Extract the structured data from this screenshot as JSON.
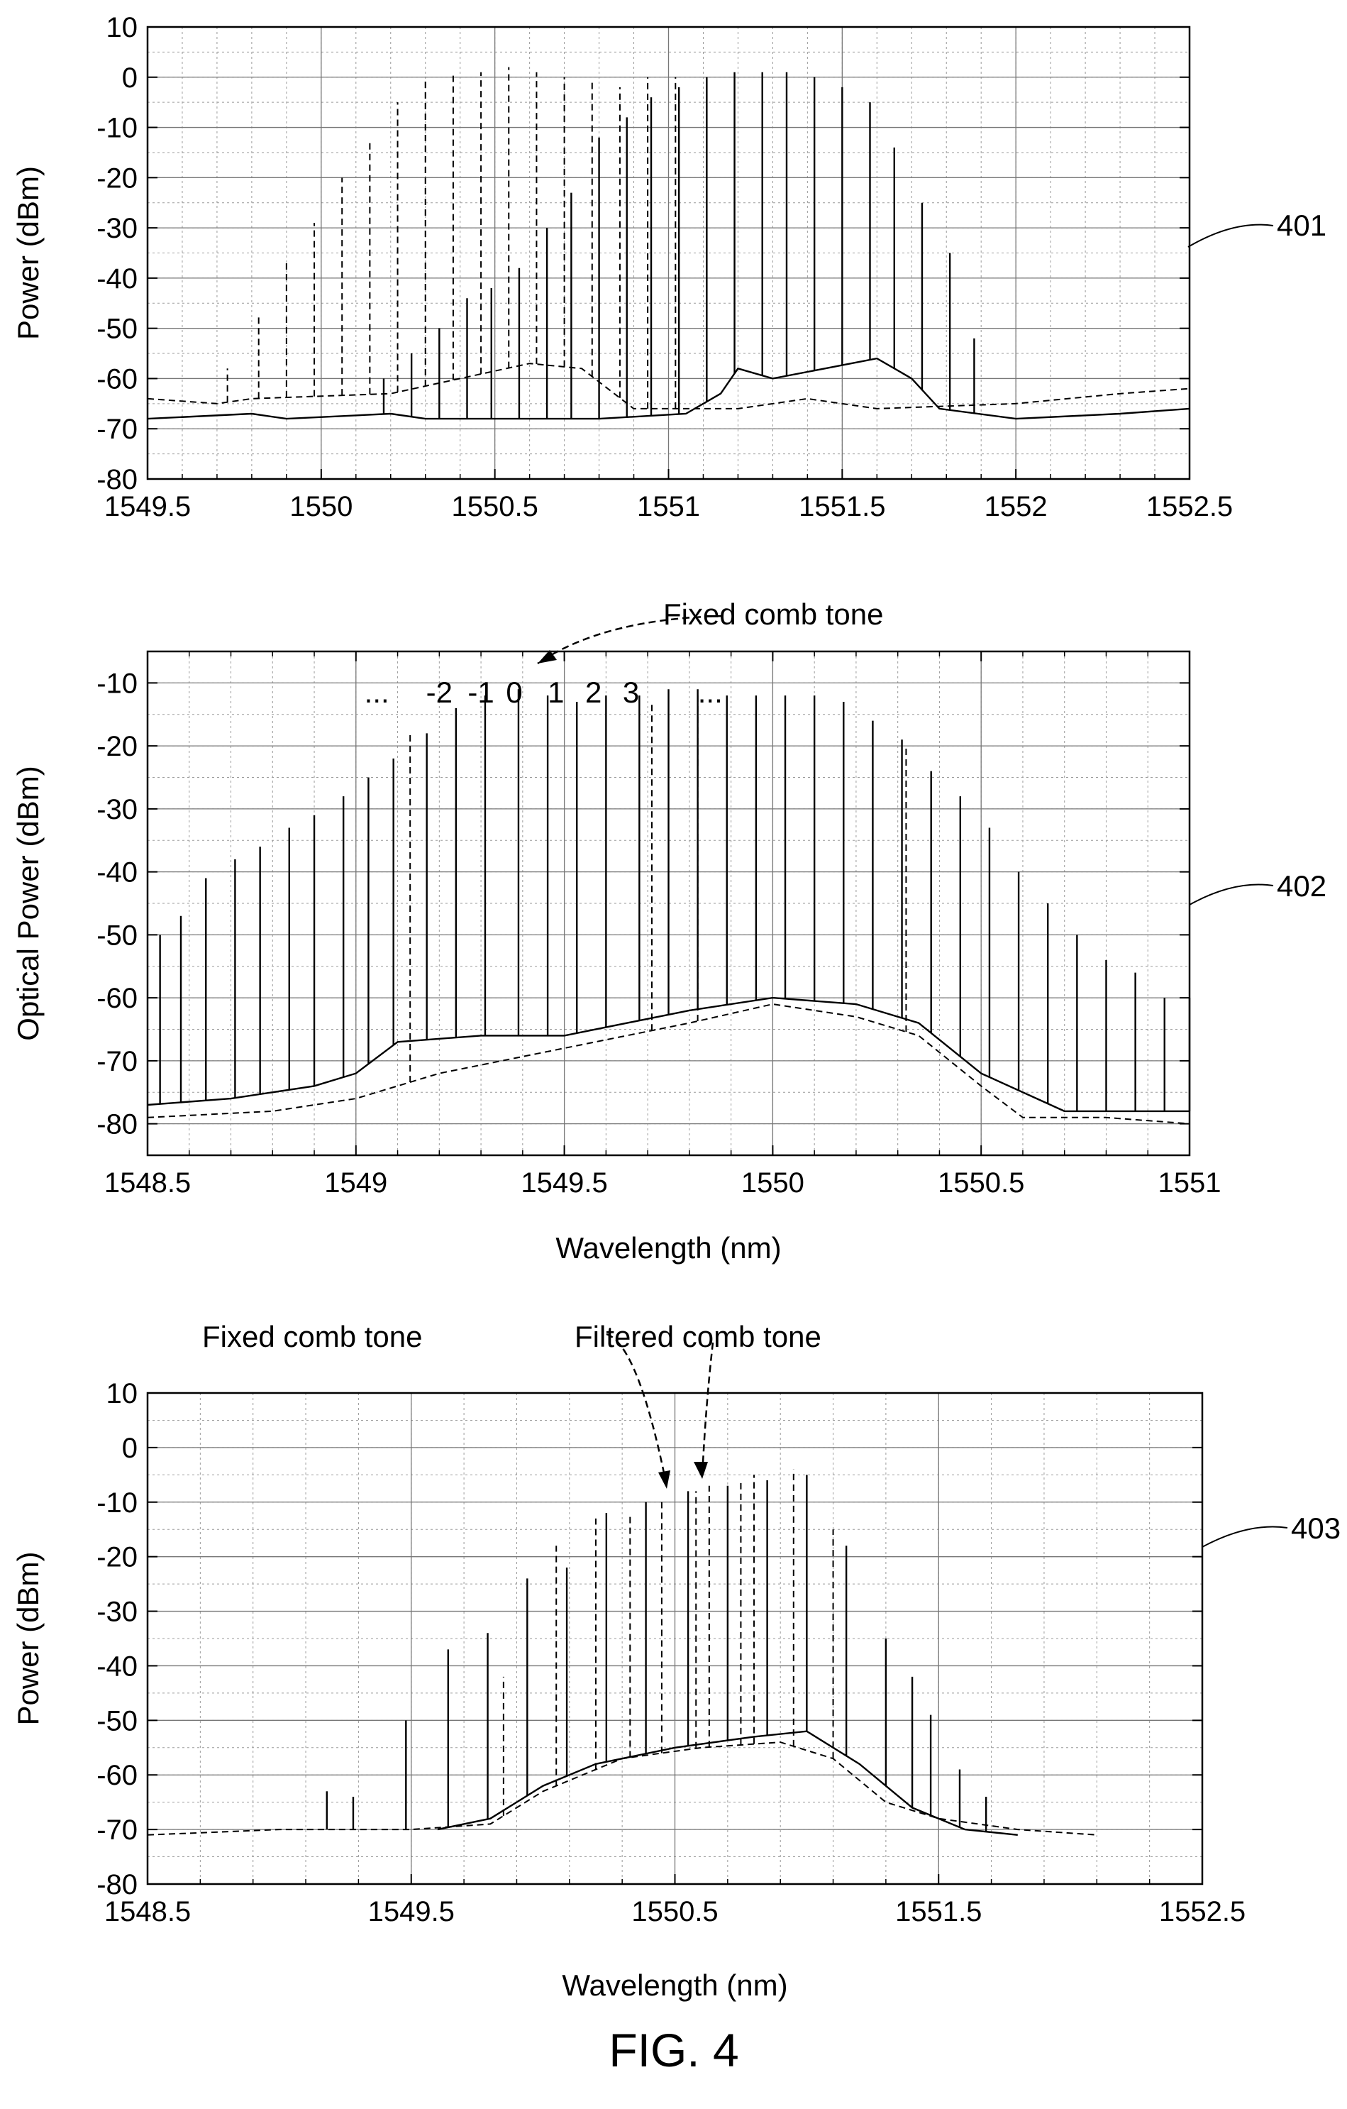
{
  "figure_label": "FIG. 4",
  "chart_data": [
    {
      "id": "401",
      "type": "line",
      "ref_label": "401",
      "xlabel": "",
      "ylabel": "Power (dBm)",
      "xlim": [
        1549.5,
        1552.5
      ],
      "ylim": [
        -80,
        10
      ],
      "xticks": [
        1549.5,
        1550,
        1550.5,
        1551,
        1551.5,
        1552,
        1552.5
      ],
      "xtick_labels": [
        "1549.5",
        "1550",
        "1550.5",
        "1551",
        "1551.5",
        "1552",
        "1552.5"
      ],
      "yticks": [
        10,
        0,
        -10,
        -20,
        -30,
        -40,
        -50,
        -60,
        -70,
        -80
      ],
      "grid": true,
      "series": [
        {
          "style": "solid",
          "floor": [
            [
              1549.5,
              -68
            ],
            [
              1549.8,
              -67
            ],
            [
              1549.9,
              -68
            ],
            [
              1550.2,
              -67
            ],
            [
              1550.3,
              -68
            ],
            [
              1550.8,
              -68
            ],
            [
              1551.05,
              -67
            ],
            [
              1551.15,
              -63
            ],
            [
              1551.2,
              -58
            ],
            [
              1551.3,
              -60
            ],
            [
              1551.45,
              -58
            ],
            [
              1551.6,
              -56
            ],
            [
              1551.7,
              -60
            ],
            [
              1551.78,
              -66
            ],
            [
              1552.0,
              -68
            ],
            [
              1552.3,
              -67
            ],
            [
              1552.5,
              -66
            ]
          ],
          "peaks": [
            [
              1550.18,
              -60
            ],
            [
              1550.26,
              -55
            ],
            [
              1550.34,
              -50
            ],
            [
              1550.42,
              -44
            ],
            [
              1550.49,
              -42
            ],
            [
              1550.57,
              -38
            ],
            [
              1550.65,
              -30
            ],
            [
              1550.72,
              -23
            ],
            [
              1550.8,
              -12
            ],
            [
              1550.88,
              -8
            ],
            [
              1550.95,
              -4
            ],
            [
              1551.03,
              -2
            ],
            [
              1551.11,
              0
            ],
            [
              1551.19,
              1
            ],
            [
              1551.27,
              1
            ],
            [
              1551.34,
              1
            ],
            [
              1551.42,
              0
            ],
            [
              1551.5,
              -2
            ],
            [
              1551.58,
              -5
            ],
            [
              1551.65,
              -14
            ],
            [
              1551.73,
              -25
            ],
            [
              1551.81,
              -35
            ],
            [
              1551.88,
              -52
            ]
          ]
        },
        {
          "style": "dashed",
          "floor": [
            [
              1549.5,
              -64
            ],
            [
              1549.7,
              -65
            ],
            [
              1549.8,
              -64
            ],
            [
              1550.2,
              -63
            ],
            [
              1550.4,
              -60
            ],
            [
              1550.6,
              -57
            ],
            [
              1550.75,
              -58
            ],
            [
              1550.9,
              -66
            ],
            [
              1551.2,
              -66
            ],
            [
              1551.4,
              -64
            ],
            [
              1551.6,
              -66
            ],
            [
              1552.0,
              -65
            ],
            [
              1552.3,
              -63
            ],
            [
              1552.5,
              -62
            ]
          ],
          "peaks": [
            [
              1549.73,
              -58
            ],
            [
              1549.82,
              -47
            ],
            [
              1549.9,
              -37
            ],
            [
              1549.98,
              -29
            ],
            [
              1550.06,
              -20
            ],
            [
              1550.14,
              -13
            ],
            [
              1550.22,
              -5
            ],
            [
              1550.3,
              0
            ],
            [
              1550.38,
              1
            ],
            [
              1550.46,
              1
            ],
            [
              1550.54,
              2
            ],
            [
              1550.62,
              1
            ],
            [
              1550.7,
              0
            ],
            [
              1550.78,
              -1
            ],
            [
              1550.86,
              -2
            ],
            [
              1550.94,
              0
            ],
            [
              1551.02,
              0
            ]
          ]
        }
      ]
    },
    {
      "id": "402",
      "type": "line",
      "ref_label": "402",
      "xlabel": "Wavelength (nm)",
      "ylabel": "Optical Power (dBm)",
      "xlim": [
        1548.5,
        1551
      ],
      "ylim": [
        -85,
        -5
      ],
      "xticks": [
        1548.5,
        1549,
        1549.5,
        1550,
        1550.5,
        1551
      ],
      "xtick_labels": [
        "1548.5",
        "1549",
        "1549.5",
        "1550",
        "1550.5",
        "1551"
      ],
      "yticks": [
        -10,
        -20,
        -30,
        -40,
        -50,
        -60,
        -70,
        -80
      ],
      "grid": true,
      "annotations": [
        "Fixed comb tone"
      ],
      "comb_index_labels": [
        "...",
        "-2",
        "-1",
        "0",
        "1",
        "2",
        "3",
        "..."
      ],
      "series": [
        {
          "style": "solid",
          "floor": [
            [
              1548.5,
              -77
            ],
            [
              1548.7,
              -76
            ],
            [
              1548.9,
              -74
            ],
            [
              1549.0,
              -72
            ],
            [
              1549.1,
              -67
            ],
            [
              1549.3,
              -66
            ],
            [
              1549.5,
              -66
            ],
            [
              1549.8,
              -62
            ],
            [
              1550.0,
              -60
            ],
            [
              1550.2,
              -61
            ],
            [
              1550.35,
              -64
            ],
            [
              1550.5,
              -72
            ],
            [
              1550.7,
              -78
            ],
            [
              1550.85,
              -78
            ],
            [
              1551,
              -78
            ]
          ],
          "peaks": [
            [
              1548.53,
              -50
            ],
            [
              1548.58,
              -47
            ],
            [
              1548.64,
              -41
            ],
            [
              1548.71,
              -38
            ],
            [
              1548.77,
              -36
            ],
            [
              1548.84,
              -33
            ],
            [
              1548.9,
              -31
            ],
            [
              1548.97,
              -28
            ],
            [
              1549.03,
              -25
            ],
            [
              1549.09,
              -22
            ],
            [
              1549.17,
              -18
            ],
            [
              1549.24,
              -14
            ],
            [
              1549.31,
              -12
            ],
            [
              1549.39,
              -11
            ],
            [
              1549.46,
              -12
            ],
            [
              1549.53,
              -13
            ],
            [
              1549.6,
              -12
            ],
            [
              1549.68,
              -12
            ],
            [
              1549.75,
              -11
            ],
            [
              1549.82,
              -11
            ],
            [
              1549.89,
              -12
            ],
            [
              1549.96,
              -12
            ],
            [
              1550.03,
              -12
            ],
            [
              1550.1,
              -12
            ],
            [
              1550.17,
              -13
            ],
            [
              1550.24,
              -16
            ],
            [
              1550.31,
              -19
            ],
            [
              1550.38,
              -24
            ],
            [
              1550.45,
              -28
            ],
            [
              1550.52,
              -33
            ],
            [
              1550.59,
              -40
            ],
            [
              1550.66,
              -45
            ],
            [
              1550.73,
              -50
            ],
            [
              1550.8,
              -54
            ],
            [
              1550.87,
              -56
            ],
            [
              1550.94,
              -60
            ],
            [
              1551.0,
              -60
            ]
          ]
        },
        {
          "style": "dashed",
          "floor": [
            [
              1548.5,
              -79
            ],
            [
              1548.8,
              -78
            ],
            [
              1549.0,
              -76
            ],
            [
              1549.2,
              -72
            ],
            [
              1549.5,
              -68
            ],
            [
              1549.8,
              -64
            ],
            [
              1550.0,
              -61
            ],
            [
              1550.2,
              -63
            ],
            [
              1550.35,
              -66
            ],
            [
              1550.5,
              -74
            ],
            [
              1550.6,
              -79
            ],
            [
              1550.8,
              -79
            ],
            [
              1551,
              -80
            ]
          ],
          "peaks": [
            [
              1549.13,
              -18
            ],
            [
              1549.71,
              -13
            ],
            [
              1549.82,
              -12
            ],
            [
              1550.32,
              -20
            ]
          ]
        }
      ]
    },
    {
      "id": "403",
      "type": "line",
      "ref_label": "403",
      "xlabel": "Wavelength (nm)",
      "ylabel": "Power (dBm)",
      "xlim": [
        1548.5,
        1552.5
      ],
      "ylim": [
        -80,
        10
      ],
      "xticks": [
        1548.5,
        1549.5,
        1550.5,
        1551.5,
        1552.5
      ],
      "xtick_labels": [
        "1548.5",
        "1549.5",
        "1550.5",
        "1551.5",
        "1552.5"
      ],
      "yticks": [
        10,
        0,
        -10,
        -20,
        -30,
        -40,
        -50,
        -60,
        -70,
        -80
      ],
      "grid": true,
      "annotations": [
        "Fixed comb tone",
        "Filtered comb tone"
      ],
      "series": [
        {
          "style": "solid",
          "floor": [
            [
              1549.6,
              -70
            ],
            [
              1549.8,
              -68
            ],
            [
              1550.0,
              -62
            ],
            [
              1550.2,
              -58
            ],
            [
              1550.5,
              -55
            ],
            [
              1550.8,
              -53
            ],
            [
              1551.0,
              -52
            ],
            [
              1551.2,
              -58
            ],
            [
              1551.4,
              -66
            ],
            [
              1551.6,
              -70
            ],
            [
              1551.8,
              -71
            ]
          ],
          "peaks": [
            [
              1549.18,
              -63
            ],
            [
              1549.28,
              -64
            ],
            [
              1549.48,
              -50
            ],
            [
              1549.64,
              -37
            ],
            [
              1549.79,
              -34
            ],
            [
              1549.94,
              -24
            ],
            [
              1550.09,
              -22
            ],
            [
              1550.24,
              -12
            ],
            [
              1550.39,
              -10
            ],
            [
              1550.55,
              -8
            ],
            [
              1550.7,
              -7
            ],
            [
              1550.85,
              -6
            ],
            [
              1551.0,
              -5
            ],
            [
              1551.15,
              -18
            ],
            [
              1551.3,
              -35
            ],
            [
              1551.4,
              -42
            ],
            [
              1551.47,
              -49
            ],
            [
              1551.58,
              -59
            ],
            [
              1551.68,
              -64
            ]
          ]
        },
        {
          "style": "dashed",
          "floor": [
            [
              1548.5,
              -71
            ],
            [
              1549.0,
              -70
            ],
            [
              1549.5,
              -70
            ],
            [
              1549.8,
              -69
            ],
            [
              1550.0,
              -63
            ],
            [
              1550.3,
              -57
            ],
            [
              1550.6,
              -55
            ],
            [
              1550.9,
              -54
            ],
            [
              1551.1,
              -57
            ],
            [
              1551.3,
              -65
            ],
            [
              1551.5,
              -68
            ],
            [
              1551.8,
              -70
            ],
            [
              1552.1,
              -71
            ]
          ],
          "peaks": [
            [
              1549.85,
              -42
            ],
            [
              1550.05,
              -18
            ],
            [
              1550.2,
              -13
            ],
            [
              1550.33,
              -12
            ],
            [
              1550.45,
              -10
            ],
            [
              1550.58,
              -8
            ],
            [
              1550.63,
              -7
            ],
            [
              1550.75,
              -6
            ],
            [
              1550.8,
              -5
            ],
            [
              1550.95,
              -4
            ],
            [
              1551.1,
              -15
            ]
          ]
        }
      ]
    }
  ]
}
